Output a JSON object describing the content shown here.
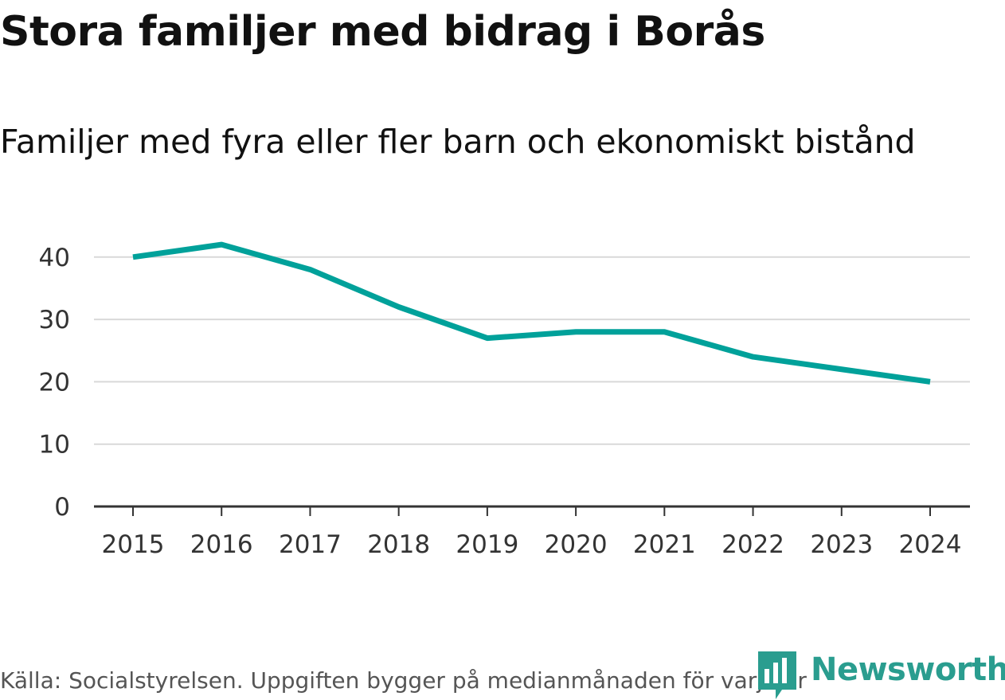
{
  "title": "Stora familjer med bidrag i Borås",
  "subtitle": "Familjer med fyra eller fler barn och ekonomiskt bistånd",
  "source": "Källa: Socialstyrelsen. Uppgiften bygger på medianmånaden för varje år",
  "brand": {
    "name": "Newsworthy",
    "icon": "newsworthy-logo-icon",
    "color": "#2a9d8f"
  },
  "colors": {
    "line": "#00a19a",
    "grid": "#d9d9d9",
    "axis": "#333333",
    "tick_text": "#333333"
  },
  "chart_data": {
    "type": "line",
    "title": "Stora familjer med bidrag i Borås",
    "subtitle": "Familjer med fyra eller fler barn och ekonomiskt bistånd",
    "xlabel": "",
    "ylabel": "",
    "categories": [
      "2015",
      "2016",
      "2017",
      "2018",
      "2019",
      "2020",
      "2021",
      "2022",
      "2023",
      "2024"
    ],
    "series": [
      {
        "name": "Familjer med fyra eller fler barn och ekonomiskt bistånd",
        "values": [
          40,
          42,
          38,
          32,
          27,
          28,
          28,
          24,
          22,
          20
        ]
      }
    ],
    "ylim": [
      0,
      45
    ],
    "yticks": [
      0,
      10,
      20,
      30,
      40
    ],
    "grid": true,
    "legend": "none"
  }
}
